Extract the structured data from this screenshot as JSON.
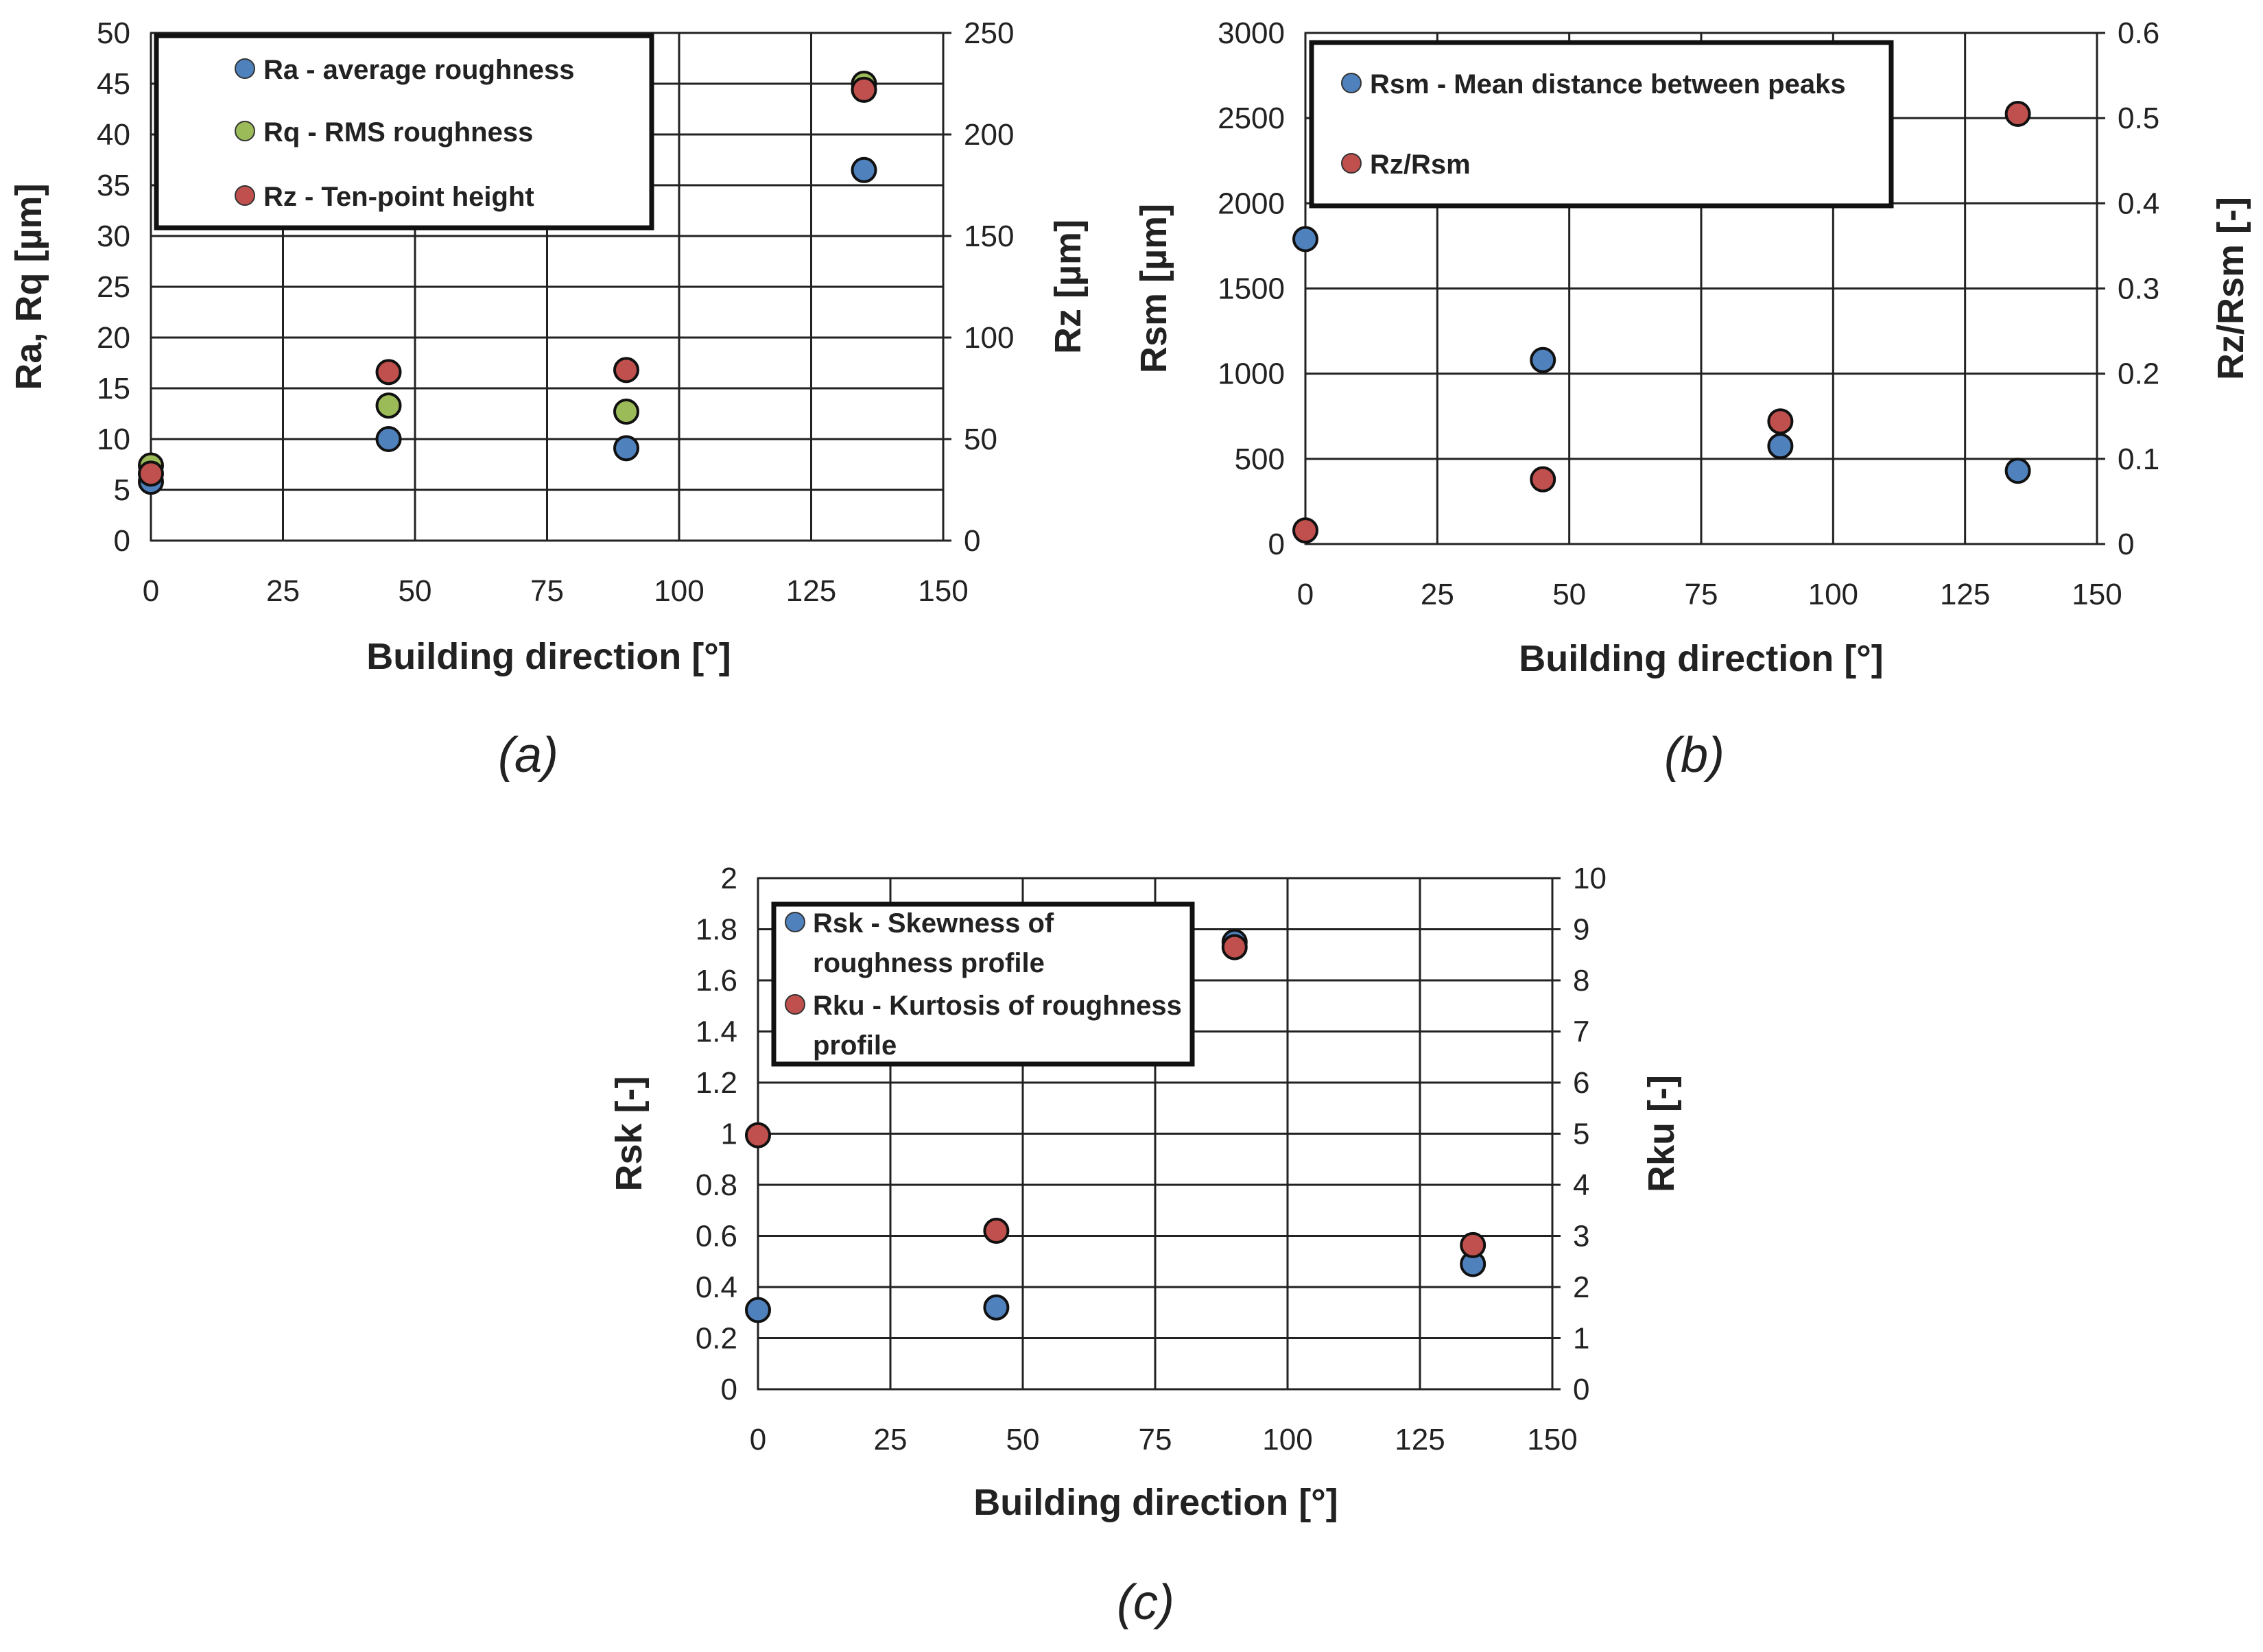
{
  "colors": {
    "blue": "#4f81bd",
    "green": "#9bbb59",
    "red": "#c0504d"
  },
  "chart_data": [
    {
      "type": "scatter",
      "panel_label": "(a)",
      "xlabel": "Building direction [°]",
      "ylabel": "Ra, Rq [µm]",
      "y2label": "Rz [µm]",
      "xlim": [
        0,
        150
      ],
      "xticks": [
        "0",
        "25",
        "50",
        "75",
        "100",
        "125",
        "150"
      ],
      "ylim": [
        0,
        50
      ],
      "yticks": [
        "0",
        "5",
        "10",
        "15",
        "20",
        "25",
        "30",
        "35",
        "40",
        "45",
        "50"
      ],
      "y2lim": [
        0,
        250
      ],
      "y2ticks": [
        "0",
        "50",
        "100",
        "150",
        "200",
        "250"
      ],
      "legend_position": "top-left",
      "series": [
        {
          "name": "Ra - average roughness",
          "color_key": "blue",
          "axis": "left",
          "x": [
            0,
            45,
            90,
            135
          ],
          "values": [
            5.8,
            10.0,
            9.1,
            36.5
          ]
        },
        {
          "name": "Rq - RMS roughness",
          "color_key": "green",
          "axis": "left",
          "x": [
            0,
            45,
            90,
            135
          ],
          "values": [
            7.4,
            13.3,
            12.7,
            45.0
          ]
        },
        {
          "name": "Rz - Ten-point height",
          "color_key": "red",
          "axis": "right",
          "x": [
            0,
            45,
            90,
            135
          ],
          "values": [
            33,
            83,
            84,
            222
          ]
        }
      ]
    },
    {
      "type": "scatter",
      "panel_label": "(b)",
      "xlabel": "Building direction [°]",
      "ylabel": "Rsm [µm]",
      "y2label": "Rz/Rsm [-]",
      "xlim": [
        0,
        150
      ],
      "xticks": [
        "0",
        "25",
        "50",
        "75",
        "100",
        "125",
        "150"
      ],
      "ylim": [
        0,
        3000
      ],
      "yticks": [
        "0",
        "500",
        "1000",
        "1500",
        "2000",
        "2500",
        "3000"
      ],
      "y2lim": [
        0,
        0.6
      ],
      "y2ticks": [
        "0",
        "0.1",
        "0.2",
        "0.3",
        "0.4",
        "0.5",
        "0.6"
      ],
      "legend_position": "top-left",
      "series": [
        {
          "name": "Rsm - Mean distance between peaks",
          "color_key": "blue",
          "axis": "left",
          "x": [
            0,
            45,
            90,
            135
          ],
          "values": [
            1790,
            1080,
            575,
            430
          ]
        },
        {
          "name": "Rz/Rsm",
          "color_key": "red",
          "axis": "right",
          "x": [
            0,
            45,
            90,
            135
          ],
          "values": [
            0.016,
            0.076,
            0.144,
            0.505
          ]
        }
      ]
    },
    {
      "type": "scatter",
      "panel_label": "(c)",
      "xlabel": "Building direction [°]",
      "ylabel": "Rsk [-]",
      "y2label": "Rku [-]",
      "xlim": [
        0,
        150
      ],
      "xticks": [
        "0",
        "25",
        "50",
        "75",
        "100",
        "125",
        "150"
      ],
      "ylim": [
        0,
        2
      ],
      "yticks": [
        "0",
        "0.2",
        "0.4",
        "0.6",
        "0.8",
        "1",
        "1.2",
        "1.4",
        "1.6",
        "1.8",
        "2"
      ],
      "y2lim": [
        0,
        10
      ],
      "y2ticks": [
        "0",
        "1",
        "2",
        "3",
        "4",
        "5",
        "6",
        "7",
        "8",
        "9",
        "10"
      ],
      "legend_position": "top-left",
      "series": [
        {
          "name": "Rsk - Skewness of roughness profile",
          "legend_lines": [
            "Rsk - Skewness of",
            "roughness profile"
          ],
          "color_key": "blue",
          "axis": "left",
          "x": [
            0,
            45,
            90,
            135
          ],
          "values": [
            0.31,
            0.32,
            1.75,
            0.49
          ]
        },
        {
          "name": "Rku - Kurtosis of roughness profile",
          "legend_lines": [
            "Rku - Kurtosis of roughness",
            "profile"
          ],
          "color_key": "red",
          "axis": "right",
          "x": [
            0,
            45,
            90,
            135
          ],
          "values": [
            4.97,
            3.1,
            8.65,
            2.82
          ]
        }
      ]
    }
  ]
}
